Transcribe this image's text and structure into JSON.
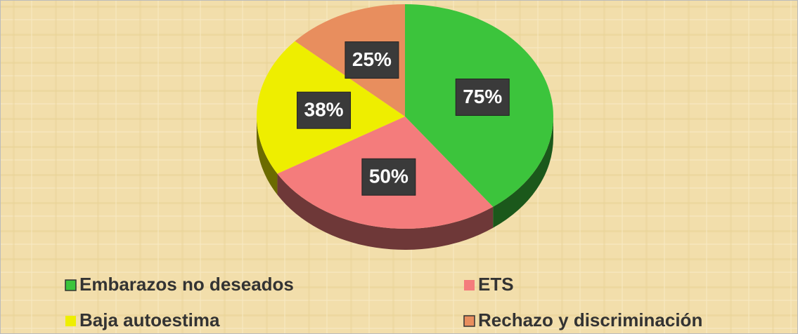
{
  "chart_data": {
    "type": "pie",
    "categories": [
      "Embarazos  no deseados",
      "ETS",
      "Baja autoestima",
      "Rechazo y discriminación"
    ],
    "values": [
      75,
      50,
      38,
      25
    ],
    "value_labels": [
      "75%",
      "50%",
      "38%",
      "25%"
    ],
    "colors": [
      "#3cc43c",
      "#f47c7c",
      "#eeee00",
      "#e88e5e"
    ],
    "legend": "bottom"
  }
}
